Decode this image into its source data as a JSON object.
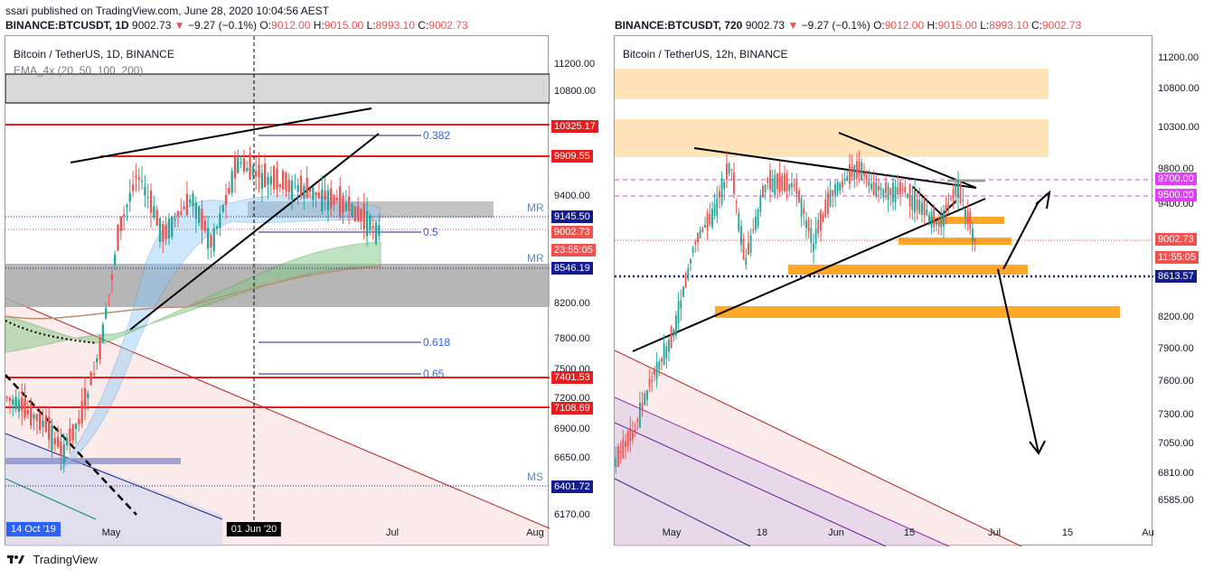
{
  "header": {
    "published": "ssari published on TradingView.com, June 28, 2020 10:04:56 AEST"
  },
  "left": {
    "symbol_line": {
      "symbol": "BINANCE:BTCUSDT, 1D",
      "price": "9002.73",
      "change": "−9.27 (−0.1%)",
      "o": "9012.00",
      "h": "9015.00",
      "l": "8993.10",
      "c": "9002.73"
    },
    "title": "Bitcoin / TetherUS, 1D, BINANCE",
    "indicator": "EMA_4x (20, 50, 100, 200)",
    "fib": [
      "0.382",
      "0.5",
      "0.618",
      "0.65"
    ],
    "zones": [
      "MR",
      "MR",
      "MS"
    ],
    "x_labels": [
      "14 Oct '19",
      "May",
      "01 Jun '20",
      "Jul",
      "Aug"
    ],
    "ticks": [
      "11200.00",
      "10800.00",
      "9400.00",
      "8200.00",
      "7800.00",
      "7500.00",
      "7200.00",
      "6900.00",
      "6650.00",
      "6170.00"
    ],
    "price_labels": [
      {
        "text": "10325.17",
        "color": "#e81c1c"
      },
      {
        "text": "9909.55",
        "color": "#e81c1c"
      },
      {
        "text": "9145.50",
        "color": "#131c8c"
      },
      {
        "text": "9002.73",
        "color": "#ef5350"
      },
      {
        "text": "23:55:05",
        "color": "#ef5350"
      },
      {
        "text": "8546.19",
        "color": "#131c8c"
      },
      {
        "text": "7401.53",
        "color": "#e81c1c"
      },
      {
        "text": "7108.69",
        "color": "#e81c1c"
      },
      {
        "text": "6401.72",
        "color": "#131c8c"
      }
    ]
  },
  "right": {
    "symbol_line": {
      "symbol": "BINANCE:BTCUSDT, 720",
      "price": "9002.73",
      "change": "−9.27 (−0.1%)",
      "o": "9012.00",
      "h": "9015.00",
      "l": "8993.10",
      "c": "9002.73"
    },
    "title": "Bitcoin / TetherUS, 12h, BINANCE",
    "x_labels": [
      "May",
      "18",
      "Jun",
      "15",
      "Jul",
      "15",
      "Au"
    ],
    "ticks": [
      "11200.00",
      "10800.00",
      "10300.00",
      "9800.00",
      "9400.00",
      "8200.00",
      "7900.00",
      "7600.00",
      "7300.00",
      "7050.00",
      "6810.00",
      "6585.00"
    ],
    "price_labels": [
      {
        "text": "9700.00",
        "color": "#e040fb"
      },
      {
        "text": "9500.00",
        "color": "#e040fb"
      },
      {
        "text": "9002.73",
        "color": "#ef5350"
      },
      {
        "text": "11:55:05",
        "color": "#ef5350"
      },
      {
        "text": "8613.57",
        "color": "#131c8c"
      }
    ]
  },
  "footer": {
    "brand": "TradingView"
  },
  "chart_data": [
    {
      "type": "candlestick",
      "title": "Bitcoin / TetherUS, 1D, BINANCE",
      "x": [
        "14 Oct '19",
        "May",
        "01 Jun '20",
        "Jul",
        "Aug"
      ],
      "ylim": [
        6100,
        11400
      ],
      "levels": [
        10325.17,
        9909.55,
        9145.5,
        8546.19,
        7401.53,
        7108.69,
        6401.72
      ],
      "fib_levels": {
        "0.382": 10290,
        "0.5": 9270,
        "0.618": 7780,
        "0.65": 7470
      },
      "last_price": 9002.73,
      "grid": false
    },
    {
      "type": "candlestick",
      "title": "Bitcoin / TetherUS, 12h, BINANCE",
      "x": [
        "May",
        "18",
        "Jun",
        "15",
        "Jul",
        "15",
        "Au"
      ],
      "ylim": [
        6450,
        11400
      ],
      "levels": [
        9700.0,
        9500.0,
        8613.57
      ],
      "last_price": 9002.73,
      "grid": false
    }
  ]
}
